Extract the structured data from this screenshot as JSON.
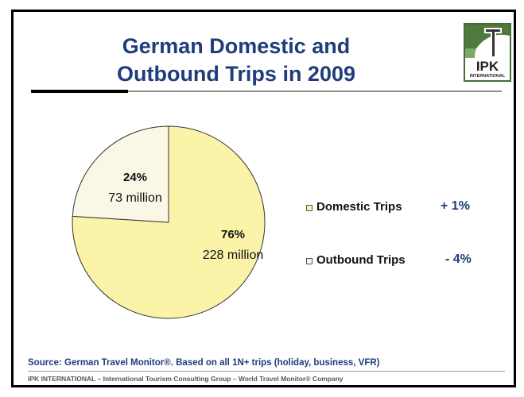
{
  "slide": {
    "title_line1": "German Domestic and",
    "title_line2": "Outbound Trips in 2009",
    "logo_text": "IPK",
    "logo_subtext": "INTERNATIONAL",
    "source": "Source: German Travel Monitor®.  Based on all 1N+ trips (holiday, business, VFR)",
    "footer": "IPK INTERNATIONAL – International Tourism Consulting Group – World Travel Monitor® Company"
  },
  "colors": {
    "title": "#1f3d7a",
    "domestic": "#fbf3a8",
    "outbound": "#fbf7e6",
    "pie_border": "#333333"
  },
  "chart_data": {
    "type": "pie",
    "slices": [
      {
        "name": "Domestic Trips",
        "percent": 76,
        "percent_label": "76%",
        "value_label": "228 million",
        "change": "+ 1%",
        "color": "#fbf3a8"
      },
      {
        "name": "Outbound Trips",
        "percent": 24,
        "percent_label": "24%",
        "value_label": "73 million",
        "change": "- 4%",
        "color": "#fbf7e6"
      }
    ],
    "legend_position": "right"
  }
}
